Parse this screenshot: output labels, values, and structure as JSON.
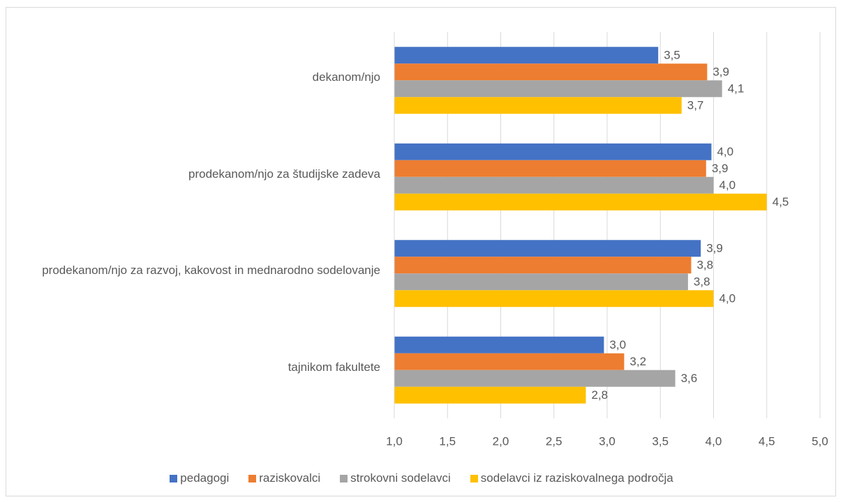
{
  "chart_data": {
    "type": "hbar",
    "categories": [
      "dekanom/njo",
      "prodekanom/njo za študijske zadeva",
      "prodekanom/njo za razvoj, kakovost in mednarodno sodelovanje",
      "tajnikom fakultete"
    ],
    "series": [
      {
        "name": "pedagogi",
        "color": "#4472c4",
        "values": [
          3.48,
          3.98,
          3.88,
          2.97
        ],
        "value_labels": [
          "3,5",
          "4,0",
          "3,9",
          "3,0"
        ]
      },
      {
        "name": "raziskovalci",
        "color": "#ed7d31",
        "values": [
          3.94,
          3.93,
          3.79,
          3.16
        ],
        "value_labels": [
          "3,9",
          "3,9",
          "3,8",
          "3,2"
        ]
      },
      {
        "name": "strokovni sodelavci",
        "color": "#a5a5a5",
        "values": [
          4.08,
          4.0,
          3.76,
          3.64
        ],
        "value_labels": [
          "4,1",
          "4,0",
          "3,8",
          "3,6"
        ]
      },
      {
        "name": "sodelavci iz raziskovalnega področja",
        "color": "#ffc000",
        "values": [
          3.7,
          4.5,
          4.0,
          2.8
        ],
        "value_labels": [
          "3,7",
          "4,5",
          "4,0",
          "2,8"
        ]
      }
    ],
    "xlim": [
      1,
      5
    ],
    "xticks": [
      {
        "value": 1,
        "label": "1,0"
      },
      {
        "value": 1.5,
        "label": "1,5"
      },
      {
        "value": 2,
        "label": "2,0"
      },
      {
        "value": 2.5,
        "label": "2,5"
      },
      {
        "value": 3,
        "label": "3,0"
      },
      {
        "value": 3.5,
        "label": "3,5"
      },
      {
        "value": 4,
        "label": "4,0"
      },
      {
        "value": 4.5,
        "label": "4,5"
      },
      {
        "value": 5,
        "label": "5,0"
      }
    ],
    "grid": true,
    "legend": "bottom"
  }
}
